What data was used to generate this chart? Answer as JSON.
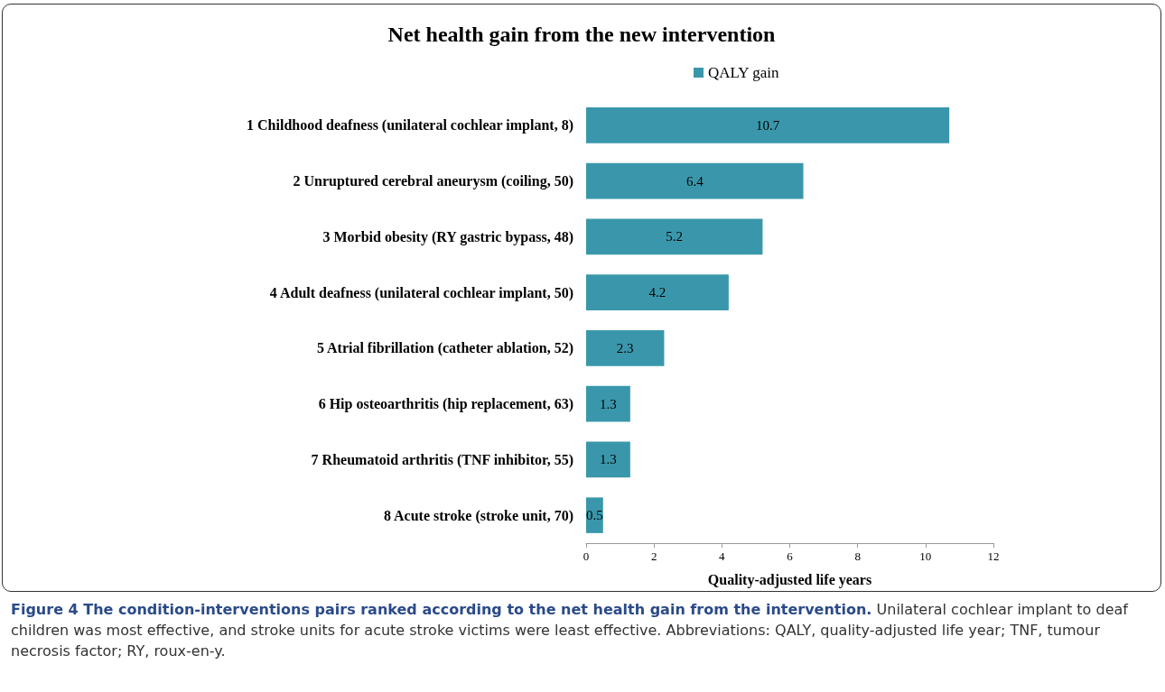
{
  "chart_data": {
    "type": "bar",
    "orientation": "horizontal",
    "title": "Net health gain from the new intervention",
    "xlabel": "Quality-adjusted life years",
    "categories": [
      "1 Childhood deafness (unilateral cochlear implant, 8)",
      "2 Unruptured cerebral aneurysm (coiling, 50)",
      "3 Morbid obesity (RY gastric bypass, 48)",
      "4 Adult deafness (unilateral cochlear implant, 50)",
      "5 Atrial fibrillation (catheter ablation, 52)",
      "6 Hip osteoarthritis (hip replacement, 63)",
      "7 Rheumatoid arthritis (TNF inhibitor, 55)",
      "8 Acute stroke (stroke unit, 70)"
    ],
    "series": [
      {
        "name": "QALY gain",
        "color": "#3a97ab",
        "values": [
          10.7,
          6.4,
          5.2,
          4.2,
          2.3,
          1.3,
          1.3,
          0.5
        ]
      }
    ],
    "xlim": [
      0,
      12
    ],
    "xticks": [
      0,
      2,
      4,
      6,
      8,
      10,
      12
    ],
    "data_labels": true,
    "legend": "top",
    "grid": false,
    "annotations": [
      "Figure 4 The condition-interventions pairs ranked according to the net health gain from the intervention.",
      "Unilateral cochlear implant to deaf children was most effective, and stroke units for acute stroke victims were least effective. Abbreviations: QALY, quality-adjusted life year; TNF, tumour necrosis factor; RY, roux-en-y."
    ]
  }
}
